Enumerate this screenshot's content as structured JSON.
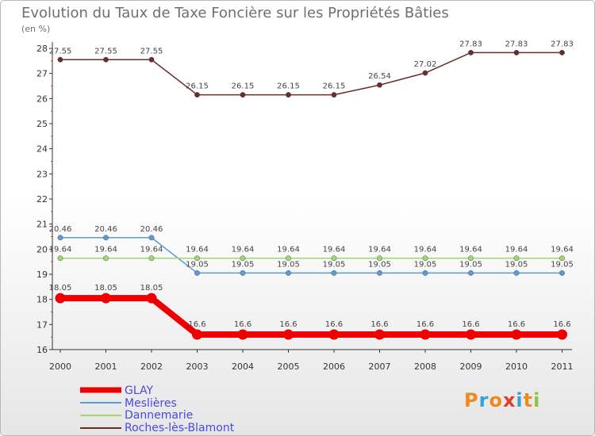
{
  "chart_data": {
    "type": "line",
    "title": "Evolution du Taux de Taxe Foncière sur les Propriétés Bâties",
    "ylabel": "(en %)",
    "xlabel": "",
    "ylim": [
      16,
      28
    ],
    "yticks": [
      "16",
      "17",
      "18",
      "19",
      "20",
      "21",
      "22",
      "23",
      "24",
      "25",
      "26",
      "27",
      "28"
    ],
    "categories": [
      "2000",
      "2001",
      "2002",
      "2003",
      "2004",
      "2005",
      "2006",
      "2007",
      "2008",
      "2009",
      "2010",
      "2011"
    ],
    "series": [
      {
        "name": "Roches-lès-Blamont",
        "color": "#6b2c2c",
        "values": [
          27.55,
          27.55,
          27.55,
          26.15,
          26.15,
          26.15,
          26.15,
          26.54,
          27.02,
          27.83,
          27.83,
          27.83
        ],
        "labels": [
          "27.55",
          "27.55",
          "27.55",
          "26.15",
          "26.15",
          "26.15",
          "26.15",
          "26.54",
          "27.02",
          "27.83",
          "27.83",
          "27.83"
        ]
      },
      {
        "name": "Meslières",
        "color": "#5b9ad5",
        "values": [
          20.46,
          20.46,
          20.46,
          19.05,
          19.05,
          19.05,
          19.05,
          19.05,
          19.05,
          19.05,
          19.05,
          19.05
        ],
        "labels": [
          "20.46",
          "20.46",
          "20.46",
          "19.05",
          "19.05",
          "19.05",
          "19.05",
          "19.05",
          "19.05",
          "19.05",
          "19.05",
          "19.05"
        ]
      },
      {
        "name": "Dannemarie",
        "color": "#9fd96b",
        "values": [
          19.64,
          19.64,
          19.64,
          19.64,
          19.64,
          19.64,
          19.64,
          19.64,
          19.64,
          19.64,
          19.64,
          19.64
        ],
        "labels": [
          "19.64",
          "19.64",
          "19.64",
          "19.64",
          "19.64",
          "19.64",
          "19.64",
          "19.64",
          "19.64",
          "19.64",
          "19.64",
          "19.64"
        ]
      },
      {
        "name": "GLAY",
        "color": "#ee0000",
        "values": [
          18.05,
          18.05,
          18.05,
          16.6,
          16.6,
          16.6,
          16.6,
          16.6,
          16.6,
          16.6,
          16.6,
          16.6
        ],
        "labels": [
          "18.05",
          "18.05",
          "18.05",
          "16.6",
          "16.6",
          "16.6",
          "16.6",
          "16.6",
          "16.6",
          "16.6",
          "16.6",
          "16.6"
        ]
      }
    ],
    "legend": [
      "GLAY",
      "Meslières",
      "Dannemarie",
      "Roches-lès-Blamont"
    ],
    "legend_position": "bottom-left"
  },
  "logo": {
    "text": "Proxiti",
    "colors": [
      "#f08a1c",
      "#3aa0d8",
      "#f08a1c",
      "#e83a2a",
      "#3aa0d8",
      "#f08a1c",
      "#8bc53f"
    ]
  }
}
